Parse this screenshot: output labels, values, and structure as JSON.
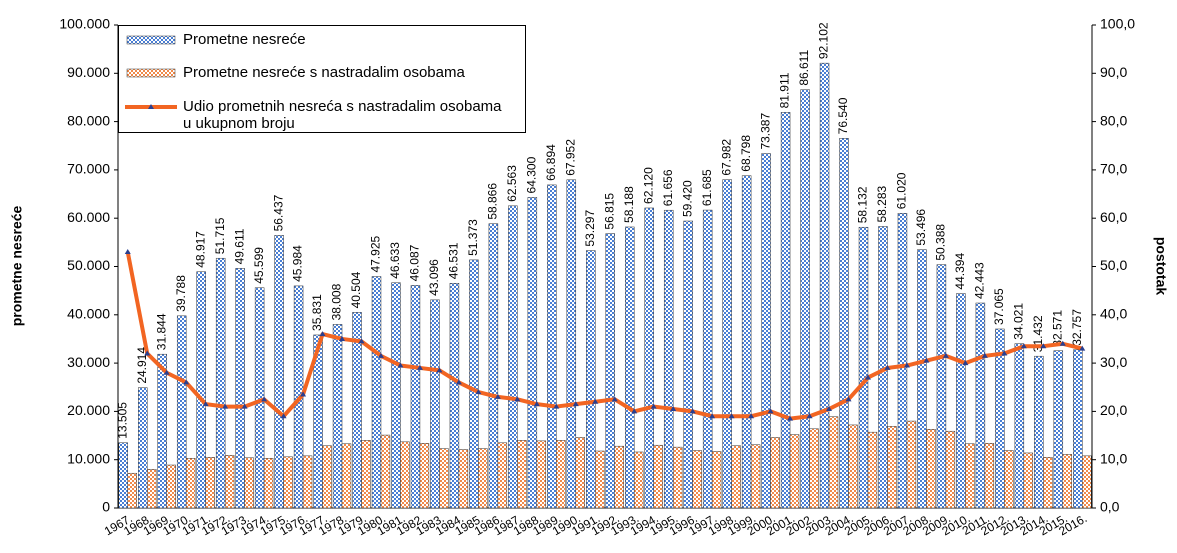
{
  "chart_data": {
    "type": "bar",
    "categories": [
      "1967.",
      "1968.",
      "1969.",
      "1970.",
      "1971.",
      "1972.",
      "1973.",
      "1974.",
      "1975.",
      "1976.",
      "1977.",
      "1978.",
      "1979.",
      "1980.",
      "1981.",
      "1982.",
      "1983.",
      "1984.",
      "1985.",
      "1986.",
      "1987.",
      "1988.",
      "1989.",
      "1990.",
      "1991.",
      "1992.",
      "1993.",
      "1994.",
      "1995.",
      "1996.",
      "1997.",
      "1998.",
      "1999.",
      "2000.",
      "2001.",
      "2002.",
      "2003.",
      "2004.",
      "2005.",
      "2006.",
      "2007.",
      "2008.",
      "2009.",
      "2010.",
      "2011.",
      "2012.",
      "2013.",
      "2014.",
      "2015.",
      "2016."
    ],
    "series": [
      {
        "name": "Prometne nesreće",
        "color": "#4a7fd4",
        "values": [
          13505,
          24914,
          31844,
          39788,
          48917,
          51715,
          49611,
          45599,
          56437,
          45984,
          35831,
          38008,
          40504,
          47925,
          46633,
          46087,
          43096,
          46531,
          51373,
          58866,
          62563,
          64300,
          66894,
          67952,
          53297,
          56815,
          58188,
          62120,
          61656,
          59420,
          61685,
          67982,
          68798,
          73387,
          81911,
          86611,
          92102,
          76540,
          58132,
          58283,
          61020,
          53496,
          50388,
          44394,
          42443,
          37065,
          34021,
          31432,
          32571,
          32757
        ],
        "value_labels": [
          "13.505",
          "24.914",
          "31.844",
          "39.788",
          "48.917",
          "51.715",
          "49.611",
          "45.599",
          "56.437",
          "45.984",
          "35.831",
          "38.008",
          "40.504",
          "47.925",
          "46.633",
          "46.087",
          "43.096",
          "46.531",
          "51.373",
          "58.866",
          "62.563",
          "64.300",
          "66.894",
          "67.952",
          "53.297",
          "56.815",
          "58.188",
          "62.120",
          "61.656",
          "59.420",
          "61.685",
          "67.982",
          "68.798",
          "73.387",
          "81.911",
          "86.611",
          "92.102",
          "76.540",
          "58.132",
          "58.283",
          "61.020",
          "53.496",
          "50.388",
          "44.394",
          "42.443",
          "37.065",
          "34.021",
          "31.432",
          "32.571",
          "32.757"
        ]
      },
      {
        "name": "Prometne nesreće s nastradalim osobama",
        "color": "#f08a4b",
        "values": [
          7200,
          8000,
          8900,
          10300,
          10500,
          10900,
          10400,
          10300,
          10600,
          10800,
          12900,
          13300,
          14000,
          15100,
          13700,
          13400,
          12300,
          12100,
          12300,
          13500,
          14000,
          13900,
          14000,
          14600,
          11800,
          12800,
          11600,
          13000,
          12600,
          11900,
          11700,
          12900,
          13100,
          14600,
          15200,
          16400,
          18900,
          17200,
          15700,
          16900,
          18000,
          16300,
          15900,
          13300,
          13400,
          11900,
          11400,
          10500,
          11100,
          10800
        ]
      },
      {
        "name": "Udio prometnih nesreća s nastradalim osobama u ukupnom broju",
        "color": "#f26522",
        "type": "line",
        "axis": "y2",
        "values": [
          53,
          32,
          28,
          26,
          21.5,
          21,
          21,
          22.5,
          19,
          23.5,
          36,
          35,
          34.5,
          31.5,
          29.5,
          29,
          28.5,
          26,
          24,
          23,
          22.5,
          21.5,
          21,
          21.5,
          22,
          22.5,
          20,
          21,
          20.5,
          20,
          19,
          19,
          19,
          20,
          18.5,
          19,
          20.5,
          22.5,
          27,
          29,
          29.5,
          30.5,
          31.5,
          30,
          31.5,
          32,
          33.5,
          33.5,
          34,
          33
        ]
      }
    ],
    "y_label": "prometne nesreće",
    "y2_label": "postotak",
    "ylim": [
      0,
      100000
    ],
    "yticks": [
      0,
      {
        "value": 10000,
        "label": "10.000"
      },
      {
        "value": 20000,
        "label": "20.000"
      },
      {
        "value": 30000,
        "label": "30.000"
      },
      {
        "value": 40000,
        "label": "40.000"
      },
      {
        "value": 50000,
        "label": "50.000"
      },
      {
        "value": 60000,
        "label": "60.000"
      },
      {
        "value": 70000,
        "label": "70.000"
      },
      {
        "value": 80000,
        "label": "80.000"
      },
      {
        "value": 90000,
        "label": "90.000"
      },
      {
        "value": 100000,
        "label": "100.000"
      }
    ],
    "y2lim": [
      0,
      100
    ],
    "y2ticks": [
      {
        "value": 0,
        "label": "0,0"
      },
      {
        "value": 10,
        "label": "10,0"
      },
      {
        "value": 20,
        "label": "20,0"
      },
      {
        "value": 30,
        "label": "30,0"
      },
      {
        "value": 40,
        "label": "40,0"
      },
      {
        "value": 50,
        "label": "50,0"
      },
      {
        "value": 60,
        "label": "60,0"
      },
      {
        "value": 70,
        "label": "70,0"
      },
      {
        "value": 80,
        "label": "80,0"
      },
      {
        "value": 90,
        "label": "90,0"
      },
      {
        "value": 100,
        "label": "100,0"
      }
    ],
    "legend": "top-left"
  }
}
